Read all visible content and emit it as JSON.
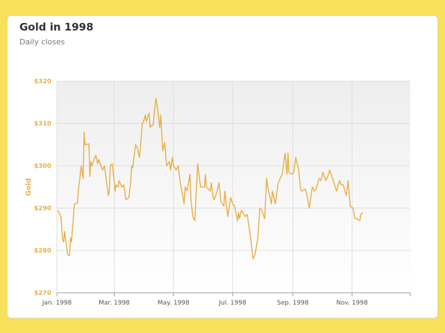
{
  "chart_data": {
    "type": "line",
    "title": "Gold in 1998",
    "subtitle": "Daily closes",
    "ylabel": "Gold",
    "xlabel": "",
    "ylim": [
      270,
      320
    ],
    "yticks": [
      270,
      280,
      290,
      300,
      310,
      320
    ],
    "ytick_labels": [
      "$270",
      "$280",
      "$290",
      "$300",
      "$310",
      "$320"
    ],
    "xticks": [
      {
        "date": "1998-01-01",
        "label": "Jan. 1998"
      },
      {
        "date": "1998-03-01",
        "label": "Mar. 1998"
      },
      {
        "date": "1998-05-01",
        "label": "May. 1998"
      },
      {
        "date": "1998-07-01",
        "label": "Jul. 1998"
      },
      {
        "date": "1998-09-01",
        "label": "Sep. 1998"
      },
      {
        "date": "1998-11-01",
        "label": "Nov. 1998"
      }
    ],
    "xlim": [
      "1998-01-01",
      "1998-12-31"
    ],
    "grid": true,
    "colors": {
      "line": "#e8b04a",
      "plot_bg_top": "#eeeeee",
      "plot_bg_bottom": "#ffffff",
      "grid": "#dddddd"
    },
    "series": [
      {
        "points": [
          [
            "1998-01-02",
            289.5
          ],
          [
            "1998-01-05",
            288.0
          ],
          [
            "1998-01-07",
            282.5
          ],
          [
            "1998-01-08",
            282.0
          ],
          [
            "1998-01-09",
            284.5
          ],
          [
            "1998-01-12",
            279.0
          ],
          [
            "1998-01-14",
            278.8
          ],
          [
            "1998-01-15",
            283.0
          ],
          [
            "1998-01-16",
            282.0
          ],
          [
            "1998-01-19",
            291.0
          ],
          [
            "1998-01-22",
            291.2
          ],
          [
            "1998-01-23",
            294.0
          ],
          [
            "1998-01-26",
            300.0
          ],
          [
            "1998-01-28",
            297.0
          ],
          [
            "1998-01-29",
            308.0
          ],
          [
            "1998-01-30",
            305.0
          ],
          [
            "1998-02-03",
            305.2
          ],
          [
            "1998-02-04",
            297.5
          ],
          [
            "1998-02-05",
            301.0
          ],
          [
            "1998-02-06",
            300.0
          ],
          [
            "1998-02-10",
            302.5
          ],
          [
            "1998-02-12",
            300.5
          ],
          [
            "1998-02-13",
            301.5
          ],
          [
            "1998-02-17",
            299.0
          ],
          [
            "1998-02-19",
            300.0
          ],
          [
            "1998-02-23",
            293.0
          ],
          [
            "1998-02-24",
            294.0
          ],
          [
            "1998-02-25",
            300.0
          ],
          [
            "1998-02-27",
            300.5
          ],
          [
            "1998-03-02",
            294.0
          ],
          [
            "1998-03-03",
            295.5
          ],
          [
            "1998-03-05",
            295.0
          ],
          [
            "1998-03-06",
            296.5
          ],
          [
            "1998-03-09",
            295.0
          ],
          [
            "1998-03-11",
            295.5
          ],
          [
            "1998-03-13",
            292.0
          ],
          [
            "1998-03-16",
            292.5
          ],
          [
            "1998-03-18",
            296.0
          ],
          [
            "1998-03-19",
            300.0
          ],
          [
            "1998-03-20",
            299.5
          ],
          [
            "1998-03-23",
            305.0
          ],
          [
            "1998-03-25",
            304.0
          ],
          [
            "1998-03-27",
            302.0
          ],
          [
            "1998-03-30",
            310.0
          ],
          [
            "1998-04-01",
            311.0
          ],
          [
            "1998-04-02",
            312.0
          ],
          [
            "1998-04-03",
            310.5
          ],
          [
            "1998-04-06",
            312.5
          ],
          [
            "1998-04-07",
            309.0
          ],
          [
            "1998-04-08",
            309.5
          ],
          [
            "1998-04-10",
            309.5
          ],
          [
            "1998-04-13",
            316.0
          ],
          [
            "1998-04-15",
            313.0
          ],
          [
            "1998-04-17",
            309.0
          ],
          [
            "1998-04-18",
            312.0
          ],
          [
            "1998-04-20",
            303.5
          ],
          [
            "1998-04-22",
            305.5
          ],
          [
            "1998-04-24",
            300.0
          ],
          [
            "1998-04-27",
            301.0
          ],
          [
            "1998-04-28",
            299.0
          ],
          [
            "1998-04-30",
            302.0
          ],
          [
            "1998-05-01",
            300.0
          ],
          [
            "1998-05-04",
            299.0
          ],
          [
            "1998-05-06",
            300.0
          ],
          [
            "1998-05-08",
            296.0
          ],
          [
            "1998-05-12",
            291.0
          ],
          [
            "1998-05-13",
            295.0
          ],
          [
            "1998-05-15",
            294.0
          ],
          [
            "1998-05-18",
            298.0
          ],
          [
            "1998-05-19",
            292.0
          ],
          [
            "1998-05-21",
            288.0
          ],
          [
            "1998-05-23",
            287.0
          ],
          [
            "1998-05-26",
            300.5
          ],
          [
            "1998-05-28",
            296.5
          ],
          [
            "1998-05-29",
            295.0
          ],
          [
            "1998-06-02",
            295.0
          ],
          [
            "1998-06-03",
            298.0
          ],
          [
            "1998-06-04",
            295.0
          ],
          [
            "1998-06-08",
            294.0
          ],
          [
            "1998-06-09",
            296.0
          ],
          [
            "1998-06-11",
            292.5
          ],
          [
            "1998-06-12",
            292.0
          ],
          [
            "1998-06-15",
            294.0
          ],
          [
            "1998-06-17",
            296.0
          ],
          [
            "1998-06-19",
            291.5
          ],
          [
            "1998-06-22",
            290.5
          ],
          [
            "1998-06-23",
            294.0
          ],
          [
            "1998-06-25",
            290.0
          ],
          [
            "1998-06-26",
            288.0
          ],
          [
            "1998-06-29",
            292.5
          ],
          [
            "1998-07-01",
            291.0
          ],
          [
            "1998-07-03",
            290.5
          ],
          [
            "1998-07-06",
            287.0
          ],
          [
            "1998-07-07",
            289.0
          ],
          [
            "1998-07-08",
            287.5
          ],
          [
            "1998-07-10",
            289.5
          ],
          [
            "1998-07-14",
            288.0
          ],
          [
            "1998-07-16",
            288.5
          ],
          [
            "1998-07-20",
            282.0
          ],
          [
            "1998-07-22",
            278.0
          ],
          [
            "1998-07-24",
            279.0
          ],
          [
            "1998-07-27",
            283.0
          ],
          [
            "1998-07-29",
            290.0
          ],
          [
            "1998-07-31",
            289.5
          ],
          [
            "1998-08-03",
            287.5
          ],
          [
            "1998-08-05",
            297.0
          ],
          [
            "1998-08-07",
            294.0
          ],
          [
            "1998-08-10",
            291.0
          ],
          [
            "1998-08-11",
            294.0
          ],
          [
            "1998-08-13",
            292.0
          ],
          [
            "1998-08-14",
            291.0
          ],
          [
            "1998-08-17",
            296.0
          ],
          [
            "1998-08-19",
            297.0
          ],
          [
            "1998-08-21",
            298.0
          ],
          [
            "1998-08-24",
            303.0
          ],
          [
            "1998-08-26",
            298.0
          ],
          [
            "1998-08-27",
            303.0
          ],
          [
            "1998-08-28",
            298.5
          ],
          [
            "1998-08-31",
            298.0
          ],
          [
            "1998-09-02",
            298.5
          ],
          [
            "1998-09-04",
            302.0
          ],
          [
            "1998-09-07",
            299.0
          ],
          [
            "1998-09-09",
            294.5
          ],
          [
            "1998-09-10",
            294.0
          ],
          [
            "1998-09-14",
            294.5
          ],
          [
            "1998-09-16",
            292.5
          ],
          [
            "1998-09-18",
            290.0
          ],
          [
            "1998-09-21",
            295.0
          ],
          [
            "1998-09-23",
            294.0
          ],
          [
            "1998-09-25",
            294.5
          ],
          [
            "1998-09-28",
            297.0
          ],
          [
            "1998-09-30",
            296.5
          ],
          [
            "1998-10-02",
            298.5
          ],
          [
            "1998-10-05",
            296.5
          ],
          [
            "1998-10-07",
            297.5
          ],
          [
            "1998-10-09",
            299.0
          ],
          [
            "1998-10-12",
            297.0
          ],
          [
            "1998-10-14",
            295.5
          ],
          [
            "1998-10-16",
            294.0
          ],
          [
            "1998-10-19",
            296.5
          ],
          [
            "1998-10-21",
            295.5
          ],
          [
            "1998-10-23",
            295.5
          ],
          [
            "1998-10-26",
            293.0
          ],
          [
            "1998-10-28",
            296.5
          ],
          [
            "1998-10-30",
            290.5
          ],
          [
            "1998-11-02",
            290.0
          ],
          [
            "1998-11-04",
            287.5
          ],
          [
            "1998-11-06",
            287.5
          ],
          [
            "1998-11-09",
            287.0
          ],
          [
            "1998-11-10",
            288.5
          ],
          [
            "1998-11-12",
            289.0
          ]
        ]
      }
    ]
  }
}
